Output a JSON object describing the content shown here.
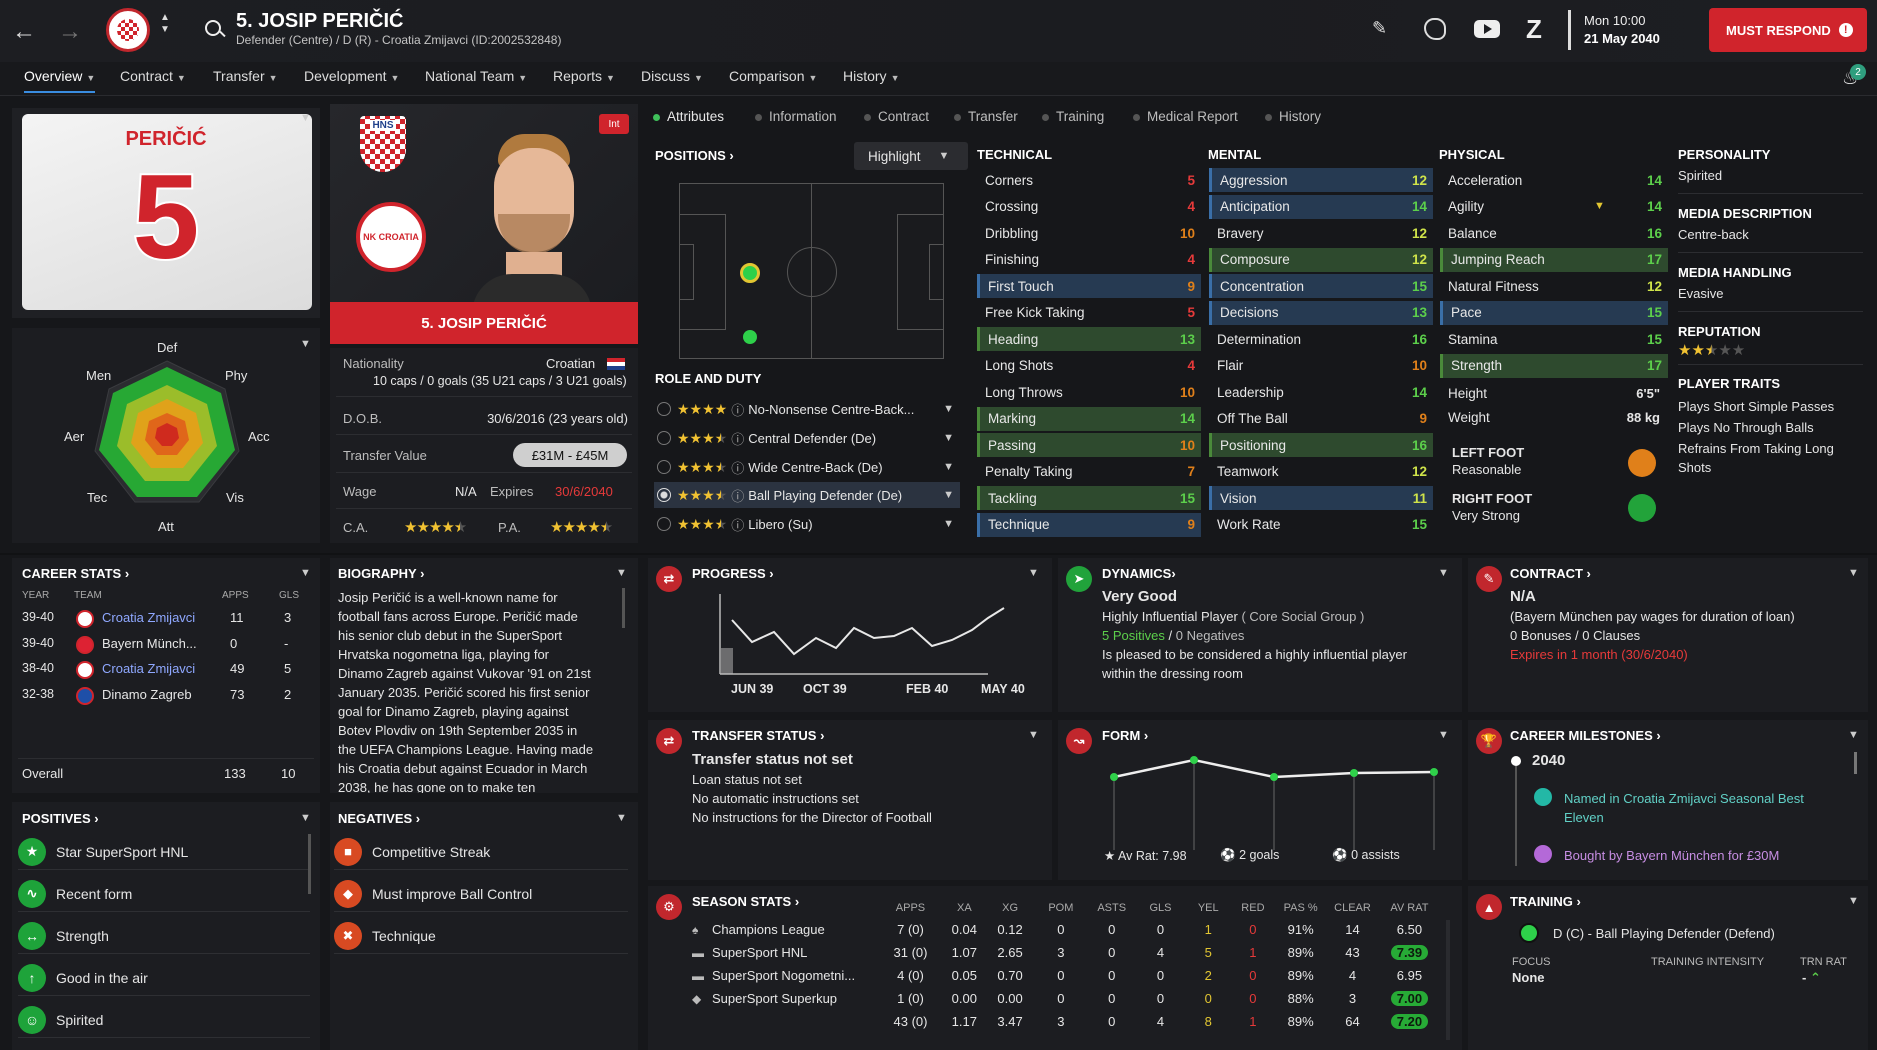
{
  "header": {
    "player_title": "5. JOSIP PERIČIĆ",
    "subtitle": "Defender (Centre) / D (R) - Croatia Zmijavci (ID:2002532848)",
    "date_line1": "Mon 10:00",
    "date_line2": "21 May 2040",
    "must_respond": "MUST RESPOND",
    "notif_count": "2",
    "icons": [
      "back-arrow-icon",
      "forward-arrow-icon",
      "club-badge",
      "search-icon",
      "edit-icon",
      "brain-icon",
      "youtube-icon",
      "z-icon",
      "alert-icon",
      "bell-icon"
    ]
  },
  "nav": {
    "items": [
      "Overview",
      "Contract",
      "Transfer",
      "Development",
      "National Team",
      "Reports",
      "Discuss",
      "Comparison",
      "History"
    ]
  },
  "shirt": {
    "name": "PERIČIĆ",
    "number": "5"
  },
  "portrait": {
    "name_bar": "5. JOSIP PERIČIĆ",
    "int_badge": "Int",
    "crest_text": "HNS",
    "club_text": "NK CROATIA"
  },
  "radar": {
    "labels": [
      "Def",
      "Phy",
      "Acc",
      "Vis",
      "Att",
      "Tec",
      "Aer",
      "Men"
    ]
  },
  "info": {
    "nationality_label": "Nationality",
    "nationality": "Croatian",
    "caps": "10 caps / 0 goals (35 U21 caps / 3 U21 goals)",
    "dob_label": "D.O.B.",
    "dob": "30/6/2016 (23 years old)",
    "value_label": "Transfer Value",
    "value": "£31M - £45M",
    "wage_label": "Wage",
    "wage": "N/A",
    "expires_label": "Expires",
    "expires": "30/6/2040",
    "ca_label": "C.A.",
    "pa_label": "P.A.",
    "ca_stars": 4.5,
    "pa_stars": 4.5
  },
  "tabs": [
    "Attributes",
    "Information",
    "Contract",
    "Transfer",
    "Training",
    "Medical Report",
    "History"
  ],
  "positions": {
    "title": "POSITIONS",
    "highlight": "Highlight"
  },
  "roles": {
    "title": "ROLE AND DUTY",
    "items": [
      {
        "label": "No-Nonsense Centre-Back...",
        "stars": 4
      },
      {
        "label": "Central Defender (De)",
        "stars": 3.5
      },
      {
        "label": "Wide Centre-Back (De)",
        "stars": 3.5
      },
      {
        "label": "Ball Playing Defender (De)",
        "stars": 3.5
      },
      {
        "label": "Libero (Su)",
        "stars": 3.5
      }
    ]
  },
  "technical": {
    "title": "TECHNICAL",
    "items": [
      [
        "Corners",
        "5"
      ],
      [
        "Crossing",
        "4"
      ],
      [
        "Dribbling",
        "10"
      ],
      [
        "Finishing",
        "4"
      ],
      [
        "First Touch",
        "9"
      ],
      [
        "Free Kick Taking",
        "5"
      ],
      [
        "Heading",
        "13"
      ],
      [
        "Long Shots",
        "4"
      ],
      [
        "Long Throws",
        "10"
      ],
      [
        "Marking",
        "14"
      ],
      [
        "Passing",
        "10"
      ],
      [
        "Penalty Taking",
        "7"
      ],
      [
        "Tackling",
        "15"
      ],
      [
        "Technique",
        "9"
      ]
    ]
  },
  "mental": {
    "title": "MENTAL",
    "items": [
      [
        "Aggression",
        "12"
      ],
      [
        "Anticipation",
        "14"
      ],
      [
        "Bravery",
        "12"
      ],
      [
        "Composure",
        "12"
      ],
      [
        "Concentration",
        "15"
      ],
      [
        "Decisions",
        "13"
      ],
      [
        "Determination",
        "16"
      ],
      [
        "Flair",
        "10"
      ],
      [
        "Leadership",
        "14"
      ],
      [
        "Off The Ball",
        "9"
      ],
      [
        "Positioning",
        "16"
      ],
      [
        "Teamwork",
        "12"
      ],
      [
        "Vision",
        "11"
      ],
      [
        "Work Rate",
        "15"
      ]
    ]
  },
  "physical": {
    "title": "PHYSICAL",
    "items": [
      [
        "Acceleration",
        "14"
      ],
      [
        "Agility",
        "14"
      ],
      [
        "Balance",
        "16"
      ],
      [
        "Jumping Reach",
        "17"
      ],
      [
        "Natural Fitness",
        "12"
      ],
      [
        "Pace",
        "15"
      ],
      [
        "Stamina",
        "15"
      ],
      [
        "Strength",
        "17"
      ]
    ],
    "height_label": "Height",
    "height": "6'5\"",
    "weight_label": "Weight",
    "weight": "88 kg",
    "left_foot_label": "LEFT FOOT",
    "left_foot": "Reasonable",
    "right_foot_label": "RIGHT FOOT",
    "right_foot": "Very Strong"
  },
  "personality": {
    "title": "PERSONALITY",
    "value": "Spirited",
    "media_desc_title": "MEDIA DESCRIPTION",
    "media_desc": "Centre-back",
    "media_handling_title": "MEDIA HANDLING",
    "media_handling": "Evasive",
    "reputation_title": "REPUTATION",
    "reputation_stars": 2.5,
    "traits_title": "PLAYER TRAITS",
    "traits": [
      "Plays Short Simple Passes",
      "Plays No Through Balls",
      "Refrains From Taking Long",
      "Shots"
    ]
  },
  "career": {
    "title": "CAREER STATS",
    "cols": [
      "YEAR",
      "TEAM",
      "APPS",
      "GLS"
    ],
    "rows": [
      [
        "39-40",
        "Croatia Zmijavci",
        "11",
        "3"
      ],
      [
        "39-40",
        "Bayern Münch...",
        "0",
        "-"
      ],
      [
        "38-40",
        "Croatia Zmijavci",
        "49",
        "5"
      ],
      [
        "32-38",
        "Dinamo Zagreb",
        "73",
        "2"
      ]
    ],
    "overall_label": "Overall",
    "overall_apps": "133",
    "overall_gls": "10"
  },
  "biography": {
    "title": "BIOGRAPHY",
    "lines": [
      "Josip Peričić is a well-known name for",
      "football fans across Europe. Peričić made",
      "his senior club debut in the SuperSport",
      "Hrvatska nogometna liga, playing for",
      "Dinamo Zagreb against Vukovar '91 on 21st",
      "January 2035. Peričić scored his first senior",
      "goal for Dinamo Zagreb, playing against",
      "Botev Plovdiv on 19th September 2035 in",
      "the UEFA Champions League. Having made",
      "his Croatia debut against Ecuador in March",
      "2038, he has gone on to make ten"
    ]
  },
  "positives": {
    "title": "POSITIVES",
    "items": [
      "Star SuperSport HNL",
      "Recent form",
      "Strength",
      "Good in the air",
      "Spirited"
    ]
  },
  "negatives": {
    "title": "NEGATIVES",
    "items": [
      "Competitive Streak",
      "Must improve Ball Control",
      "Technique"
    ]
  },
  "progress": {
    "title": "PROGRESS",
    "xlabels": [
      "JUN 39",
      "OCT 39",
      "FEB 40",
      "MAY 40"
    ]
  },
  "dynamics": {
    "title": "DYNAMICS",
    "rating": "Very Good",
    "line1": "Highly Influential Player",
    "group": "( Core Social Group )",
    "positives": "5 Positives",
    "slash": "/",
    "negatives": "0 Negatives",
    "line3": "Is pleased to be considered a highly influential player",
    "line4": "within the dressing room"
  },
  "contract": {
    "title": "CONTRACT",
    "value": "N/A",
    "line1": "(Bayern München pay wages for duration of loan)",
    "line2": "0 Bonuses / 0 Clauses",
    "line3": "Expires in 1 month (30/6/2040)"
  },
  "transfer": {
    "title": "TRANSFER STATUS",
    "status": "Transfer status not set",
    "line1": "Loan status not set",
    "line2": "No automatic instructions set",
    "line3": "No instructions for the Director of Football"
  },
  "form": {
    "title": "FORM",
    "av_rat": "Av Rat: 7.98",
    "goals": "2 goals",
    "assists": "0 assists"
  },
  "milestones": {
    "title": "CAREER MILESTONES",
    "year": "2040",
    "m1a": "Named in Croatia Zmijavci Seasonal Best",
    "m1b": "Eleven",
    "m2": "Bought by Bayern München for £30M"
  },
  "season": {
    "title": "SEASON STATS",
    "cols": [
      "APPS",
      "XA",
      "XG",
      "POM",
      "ASTS",
      "GLS",
      "YEL",
      "RED",
      "PAS %",
      "CLEAR",
      "AV RAT"
    ],
    "rows": [
      [
        "Champions League",
        "7 (0)",
        "0.04",
        "0.12",
        "0",
        "0",
        "0",
        "1",
        "0",
        "91%",
        "14",
        "6.50"
      ],
      [
        "SuperSport HNL",
        "31 (0)",
        "1.07",
        "2.65",
        "3",
        "0",
        "4",
        "5",
        "1",
        "89%",
        "43",
        "7.39"
      ],
      [
        "SuperSport Nogometni...",
        "4 (0)",
        "0.05",
        "0.70",
        "0",
        "0",
        "0",
        "2",
        "0",
        "89%",
        "4",
        "6.95"
      ],
      [
        "SuperSport Superkup",
        "1 (0)",
        "0.00",
        "0.00",
        "0",
        "0",
        "0",
        "0",
        "0",
        "88%",
        "3",
        "7.00"
      ],
      [
        "",
        "43 (0)",
        "1.17",
        "3.47",
        "3",
        "0",
        "4",
        "8",
        "1",
        "89%",
        "64",
        "7.20"
      ]
    ]
  },
  "training": {
    "title": "TRAINING",
    "role": "D (C) - Ball Playing Defender (Defend)",
    "focus_label": "FOCUS",
    "focus": "None",
    "intensity_label": "TRAINING INTENSITY",
    "trn_rat_label": "TRN RAT",
    "trn_rat": "-"
  },
  "colors": {
    "accent_blue": "#3a8de0",
    "red": "#d0242c",
    "green": "#1ea33a",
    "highlight_blue": "#263a52",
    "highlight_green": "#2e4a2e"
  }
}
